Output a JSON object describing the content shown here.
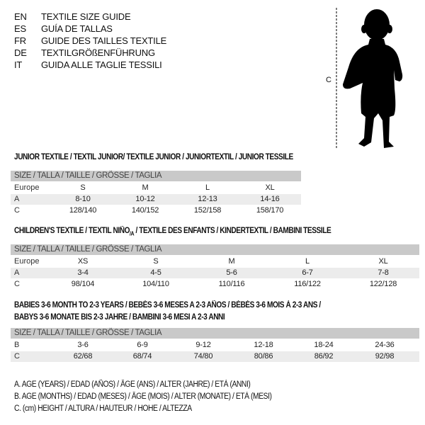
{
  "languages": [
    {
      "code": "EN",
      "label": "TEXTILE SIZE GUIDE"
    },
    {
      "code": "ES",
      "label": "GUÍA DE TALLAS"
    },
    {
      "code": "FR",
      "label": "GUIDE DES TAILLES TEXTILE"
    },
    {
      "code": "DE",
      "label": "TEXTILGRÖßENFÜHRUNG"
    },
    {
      "code": "IT",
      "label": "GUIDA ALLE TAGLIE TESSILI"
    }
  ],
  "figure": {
    "measure_label": "C"
  },
  "junior": {
    "title": "JUNIOR TEXTILE / TEXTIL JUNIOR/ TEXTILE JUNIOR / JUNIORTEXTIL / JUNIOR TESSILE",
    "header": "SIZE / TALLA / TAILLE / GRÖSSE / TAGLIA",
    "rows": [
      {
        "label": "Europe",
        "cells": [
          "S",
          "M",
          "L",
          "XL"
        ]
      },
      {
        "label": "A",
        "cells": [
          "8-10",
          "10-12",
          "12-13",
          "14-16"
        ]
      },
      {
        "label": "C",
        "cells": [
          "128/140",
          "140/152",
          "152/158",
          "158/170"
        ]
      }
    ]
  },
  "children": {
    "title": "CHILDREN'S TEXTILE / TEXTIL NIÑO",
    "title_sub": "/A",
    "title_rest": " / TEXTILE DES ENFANTS / KINDERTEXTIL / BAMBINI TESSILE",
    "header": "SIZE / TALLA / TAILLE / GRÖSSE / TAGLIA",
    "rows": [
      {
        "label": "Europe",
        "cells": [
          "XS",
          "S",
          "M",
          "L",
          "XL"
        ]
      },
      {
        "label": "A",
        "cells": [
          "3-4",
          "4-5",
          "5-6",
          "6-7",
          "7-8"
        ]
      },
      {
        "label": "C",
        "cells": [
          "98/104",
          "104/110",
          "110/116",
          "116/122",
          "122/128"
        ]
      }
    ]
  },
  "babies": {
    "title_line1": "BABIES 3-6 MONTH TO 2-3 YEARS / BEBÉS 3-6 MESES A 2-3 AÑOS / BÉBÉS 3-6 MOIS À 2-3 ANS /",
    "title_line2": "BABYS 3-6 MONATE BIS 2-3 JAHRE / BAMBINI 3-6 MESI A 2-3 ANNI",
    "header": "SIZE / TALLA / TAILLE / GRÖSSE / TAGLIA",
    "rows": [
      {
        "label": "B",
        "cells": [
          "3-6",
          "6-9",
          "9-12",
          "12-18",
          "18-24",
          "24-36"
        ]
      },
      {
        "label": "C",
        "cells": [
          "62/68",
          "68/74",
          "74/80",
          "80/86",
          "86/92",
          "92/98"
        ]
      }
    ]
  },
  "legend": [
    "A. AGE (YEARS) / EDAD (AÑOS) / ÂGE (ANS) / ALTER (JAHRE) / ETÀ (ANNI)",
    "B. AGE (MONTHS) / EDAD (MESES) / ÂGE (MOIS) / ALTER (MONATE) / ETÀ (MESI)",
    "C. (cm) HEIGHT / ALTURA / HAUTEUR / HÖHE / ALTEZZA"
  ]
}
